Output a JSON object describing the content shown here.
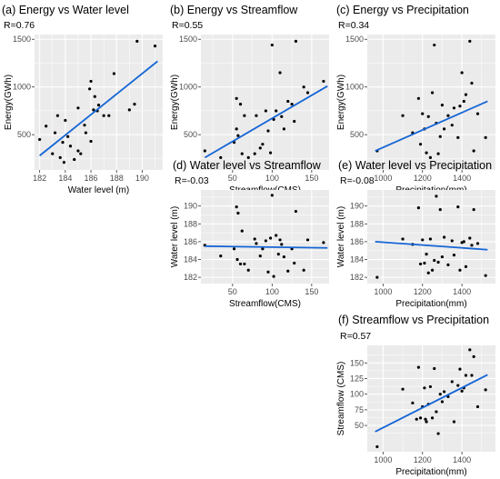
{
  "colors": {
    "panel_bg": "#ebebeb",
    "grid": "#ffffff",
    "point": "#000000",
    "fit_line": "#1565d6"
  },
  "chart_data": [
    {
      "id": "a",
      "type": "scatter",
      "title": "(a) Energy vs Water level",
      "r_label": "R=0.76",
      "xlabel": "Water level (m)",
      "ylabel": "Energy(GWh)",
      "xlim": [
        181.6,
        191.6
      ],
      "ylim": [
        130,
        1550
      ],
      "xticks": [
        182,
        184,
        186,
        188,
        190
      ],
      "yticks": [
        500,
        1000,
        1500
      ],
      "xticklabels": [
        "182",
        "184",
        "186",
        "188",
        "190"
      ],
      "yticklabels": [
        "500",
        "1000",
        "1500"
      ],
      "fit": {
        "x": [
          182,
          191.2
        ],
        "y": [
          280,
          1270
        ]
      },
      "points": [
        [
          182,
          450
        ],
        [
          182.5,
          590
        ],
        [
          183,
          300
        ],
        [
          183.2,
          520
        ],
        [
          183.4,
          700
        ],
        [
          183.6,
          260
        ],
        [
          183.8,
          420
        ],
        [
          183.9,
          210
        ],
        [
          184,
          650
        ],
        [
          184.2,
          480
        ],
        [
          184.4,
          380
        ],
        [
          184.7,
          240
        ],
        [
          185,
          780
        ],
        [
          185,
          330
        ],
        [
          185.2,
          300
        ],
        [
          185.5,
          600
        ],
        [
          185.6,
          520
        ],
        [
          185.9,
          980
        ],
        [
          186,
          430
        ],
        [
          186,
          1060
        ],
        [
          186.2,
          760
        ],
        [
          186.3,
          900
        ],
        [
          186.5,
          750
        ],
        [
          186.6,
          810
        ],
        [
          187,
          700
        ],
        [
          187.4,
          700
        ],
        [
          187.8,
          1140
        ],
        [
          189,
          760
        ],
        [
          189.4,
          820
        ],
        [
          189.6,
          1480
        ],
        [
          191,
          1430
        ]
      ]
    },
    {
      "id": "b",
      "type": "scatter",
      "title": "(b) Energy vs Streamflow",
      "r_label": "R=0.55",
      "xlabel": "Streamflow(CMS)",
      "ylabel": "Energy(GWh)",
      "xlim": [
        10,
        172
      ],
      "ylim": [
        130,
        1550
      ],
      "xticks": [
        50,
        100,
        150
      ],
      "yticks": [
        500,
        1000,
        1500
      ],
      "xticklabels": [
        "50",
        "100",
        "150"
      ],
      "yticklabels": [
        "500",
        "1000",
        "1500"
      ],
      "fit": {
        "x": [
          15,
          170
        ],
        "y": [
          260,
          1010
        ]
      },
      "points": [
        [
          15,
          330
        ],
        [
          35,
          260
        ],
        [
          52,
          420
        ],
        [
          55,
          560
        ],
        [
          55,
          880
        ],
        [
          57,
          490
        ],
        [
          60,
          820
        ],
        [
          62,
          300
        ],
        [
          65,
          700
        ],
        [
          70,
          260
        ],
        [
          78,
          300
        ],
        [
          80,
          700
        ],
        [
          85,
          360
        ],
        [
          88,
          400
        ],
        [
          92,
          750
        ],
        [
          95,
          540
        ],
        [
          98,
          310
        ],
        [
          100,
          1440
        ],
        [
          102,
          660
        ],
        [
          105,
          750
        ],
        [
          110,
          1150
        ],
        [
          112,
          690
        ],
        [
          115,
          560
        ],
        [
          120,
          850
        ],
        [
          125,
          820
        ],
        [
          128,
          640
        ],
        [
          130,
          1480
        ],
        [
          140,
          1000
        ],
        [
          145,
          940
        ],
        [
          165,
          1060
        ]
      ]
    },
    {
      "id": "c",
      "type": "scatter",
      "title": "(c) Energy vs Precipitation",
      "r_label": "R=0.34",
      "xlabel": "Precipitation(mm)",
      "ylabel": "Energy(GWh)",
      "xlim": [
        920,
        1570
      ],
      "ylim": [
        130,
        1550
      ],
      "xticks": [
        1000,
        1200,
        1400
      ],
      "yticks": [
        500,
        1000,
        1500
      ],
      "xticklabels": [
        "1000",
        "1200",
        "1400"
      ],
      "yticklabels": [
        "500",
        "1000",
        "1500"
      ],
      "fit": {
        "x": [
          960,
          1530
        ],
        "y": [
          330,
          850
        ]
      },
      "points": [
        [
          970,
          330
        ],
        [
          1100,
          700
        ],
        [
          1150,
          520
        ],
        [
          1180,
          880
        ],
        [
          1190,
          400
        ],
        [
          1200,
          720
        ],
        [
          1210,
          560
        ],
        [
          1220,
          310
        ],
        [
          1230,
          690
        ],
        [
          1240,
          260
        ],
        [
          1250,
          940
        ],
        [
          1260,
          1440
        ],
        [
          1270,
          620
        ],
        [
          1280,
          300
        ],
        [
          1290,
          480
        ],
        [
          1300,
          810
        ],
        [
          1310,
          560
        ],
        [
          1330,
          700
        ],
        [
          1350,
          600
        ],
        [
          1360,
          780
        ],
        [
          1380,
          470
        ],
        [
          1390,
          800
        ],
        [
          1400,
          1150
        ],
        [
          1410,
          850
        ],
        [
          1420,
          920
        ],
        [
          1440,
          1480
        ],
        [
          1450,
          1040
        ],
        [
          1460,
          330
        ],
        [
          1480,
          720
        ],
        [
          1520,
          470
        ]
      ]
    },
    {
      "id": "d",
      "type": "scatter",
      "title": "(d) Water level vs Streamflow",
      "r_label": "R=-0.03",
      "xlabel": "Streamflow(CMS)",
      "ylabel": "Water level (m)",
      "xlim": [
        10,
        172
      ],
      "ylim": [
        181.3,
        191.8
      ],
      "xticks": [
        50,
        100,
        150
      ],
      "yticks": [
        182,
        184,
        186,
        188,
        190
      ],
      "xticklabels": [
        "50",
        "100",
        "150"
      ],
      "yticklabels": [
        "182",
        "184",
        "186",
        "188",
        "190"
      ],
      "fit": {
        "x": [
          15,
          170
        ],
        "y": [
          185.5,
          185.3
        ]
      },
      "points": [
        [
          15,
          185.6
        ],
        [
          35,
          184.4
        ],
        [
          52,
          185.2
        ],
        [
          55,
          189.9
        ],
        [
          56,
          184.0
        ],
        [
          57,
          189.2
        ],
        [
          60,
          183.5
        ],
        [
          62,
          187.2
        ],
        [
          65,
          183.5
        ],
        [
          70,
          182.8
        ],
        [
          78,
          186.3
        ],
        [
          80,
          185.8
        ],
        [
          85,
          184.4
        ],
        [
          88,
          185.2
        ],
        [
          92,
          186.1
        ],
        [
          95,
          182.6
        ],
        [
          98,
          186.4
        ],
        [
          100,
          191.2
        ],
        [
          102,
          182.1
        ],
        [
          105,
          186.7
        ],
        [
          108,
          184.6
        ],
        [
          110,
          186.2
        ],
        [
          112,
          185.7
        ],
        [
          115,
          184.3
        ],
        [
          120,
          182.7
        ],
        [
          125,
          185.2
        ],
        [
          128,
          183.6
        ],
        [
          130,
          189.4
        ],
        [
          140,
          182.8
        ],
        [
          145,
          186.2
        ],
        [
          165,
          185.9
        ]
      ]
    },
    {
      "id": "e",
      "type": "scatter",
      "title": "(e)  Water level vs Precipitation",
      "r_label": "R=-0.08",
      "xlabel": "Precipitation(mm)",
      "ylabel": "Water level (m)",
      "xlim": [
        920,
        1570
      ],
      "ylim": [
        181.3,
        191.8
      ],
      "xticks": [
        1000,
        1200,
        1400
      ],
      "yticks": [
        182,
        184,
        186,
        188,
        190
      ],
      "xticklabels": [
        "1000",
        "1200",
        "1400"
      ],
      "yticklabels": [
        "182",
        "184",
        "186",
        "188",
        "190"
      ],
      "fit": {
        "x": [
          960,
          1530
        ],
        "y": [
          186.0,
          185.1
        ]
      },
      "points": [
        [
          970,
          182.0
        ],
        [
          1100,
          186.3
        ],
        [
          1150,
          185.7
        ],
        [
          1180,
          189.8
        ],
        [
          1190,
          183.5
        ],
        [
          1200,
          186.2
        ],
        [
          1210,
          183.6
        ],
        [
          1220,
          184.6
        ],
        [
          1230,
          182.5
        ],
        [
          1240,
          186.3
        ],
        [
          1250,
          182.8
        ],
        [
          1260,
          183.9
        ],
        [
          1270,
          191.1
        ],
        [
          1280,
          183.7
        ],
        [
          1290,
          189.6
        ],
        [
          1300,
          184.3
        ],
        [
          1310,
          186.5
        ],
        [
          1330,
          183.4
        ],
        [
          1350,
          186.1
        ],
        [
          1360,
          184.5
        ],
        [
          1380,
          189.9
        ],
        [
          1390,
          182.8
        ],
        [
          1400,
          185.9
        ],
        [
          1410,
          186.0
        ],
        [
          1420,
          183.2
        ],
        [
          1440,
          186.4
        ],
        [
          1450,
          185.6
        ],
        [
          1460,
          189.6
        ],
        [
          1480,
          185.8
        ],
        [
          1520,
          182.2
        ]
      ]
    },
    {
      "id": "f",
      "type": "scatter",
      "title": "(f) Streamflow vs Precipitation",
      "r_label": "R=0.57",
      "xlabel": "Precipitation(mm)",
      "ylabel": "Streamflow (CMS)",
      "xlim": [
        920,
        1570
      ],
      "ylim": [
        8,
        178
      ],
      "xticks": [
        1000,
        1200,
        1400
      ],
      "yticks": [
        50,
        75,
        100,
        125,
        150
      ],
      "xticklabels": [
        "1000",
        "1200",
        "1400"
      ],
      "yticklabels": [
        "50",
        "75",
        "100",
        "125",
        "150"
      ],
      "fit": {
        "x": [
          960,
          1530
        ],
        "y": [
          40,
          131
        ]
      },
      "points": [
        [
          970,
          16
        ],
        [
          1100,
          108
        ],
        [
          1150,
          86
        ],
        [
          1170,
          60
        ],
        [
          1180,
          143
        ],
        [
          1190,
          62
        ],
        [
          1200,
          80
        ],
        [
          1210,
          110
        ],
        [
          1215,
          60
        ],
        [
          1220,
          56
        ],
        [
          1230,
          84
        ],
        [
          1240,
          112
        ],
        [
          1250,
          62
        ],
        [
          1260,
          141
        ],
        [
          1270,
          72
        ],
        [
          1280,
          37
        ],
        [
          1290,
          100
        ],
        [
          1300,
          88
        ],
        [
          1310,
          104
        ],
        [
          1330,
          96
        ],
        [
          1350,
          120
        ],
        [
          1360,
          56
        ],
        [
          1380,
          114
        ],
        [
          1390,
          140
        ],
        [
          1400,
          105
        ],
        [
          1410,
          110
        ],
        [
          1420,
          130
        ],
        [
          1440,
          171
        ],
        [
          1450,
          130
        ],
        [
          1460,
          160
        ],
        [
          1480,
          80
        ],
        [
          1520,
          107
        ]
      ]
    }
  ]
}
